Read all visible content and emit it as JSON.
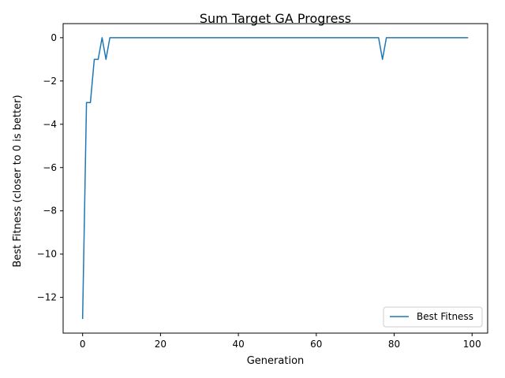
{
  "chart_data": {
    "type": "line",
    "title": "Sum Target GA Progress",
    "xlabel": "Generation",
    "ylabel": "Best Fitness (closer to 0 is better)",
    "xlim": [
      -5,
      104
    ],
    "ylim": [
      -13.65,
      0.65
    ],
    "xticks": [
      0,
      20,
      40,
      60,
      80,
      100
    ],
    "yticks": [
      0,
      -2,
      -4,
      -6,
      -8,
      -10,
      -12
    ],
    "xtick_labels": [
      "0",
      "20",
      "40",
      "60",
      "80",
      "100"
    ],
    "ytick_labels": [
      "0",
      "−2",
      "−4",
      "−6",
      "−8",
      "−10",
      "−12"
    ],
    "grid": false,
    "legend_position": "lower-right",
    "series": [
      {
        "name": "Best Fitness",
        "color": "#1f77b4",
        "x": [
          0,
          1,
          2,
          3,
          4,
          5,
          6,
          7,
          8,
          9,
          10,
          11,
          12,
          13,
          14,
          15,
          16,
          17,
          18,
          19,
          20,
          21,
          22,
          23,
          24,
          25,
          26,
          27,
          28,
          29,
          30,
          31,
          32,
          33,
          34,
          35,
          36,
          37,
          38,
          39,
          40,
          41,
          42,
          43,
          44,
          45,
          46,
          47,
          48,
          49,
          50,
          51,
          52,
          53,
          54,
          55,
          56,
          57,
          58,
          59,
          60,
          61,
          62,
          63,
          64,
          65,
          66,
          67,
          68,
          69,
          70,
          71,
          72,
          73,
          74,
          75,
          76,
          77,
          78,
          79,
          80,
          81,
          82,
          83,
          84,
          85,
          86,
          87,
          88,
          89,
          90,
          91,
          92,
          93,
          94,
          95,
          96,
          97,
          98,
          99
        ],
        "y": [
          -13,
          -3,
          -3,
          -1,
          -1,
          0,
          -1,
          0,
          0,
          0,
          0,
          0,
          0,
          0,
          0,
          0,
          0,
          0,
          0,
          0,
          0,
          0,
          0,
          0,
          0,
          0,
          0,
          0,
          0,
          0,
          0,
          0,
          0,
          0,
          0,
          0,
          0,
          0,
          0,
          0,
          0,
          0,
          0,
          0,
          0,
          0,
          0,
          0,
          0,
          0,
          0,
          0,
          0,
          0,
          0,
          0,
          0,
          0,
          0,
          0,
          0,
          0,
          0,
          0,
          0,
          0,
          0,
          0,
          0,
          0,
          0,
          0,
          0,
          0,
          0,
          0,
          0,
          -1,
          0,
          0,
          0,
          0,
          0,
          0,
          0,
          0,
          0,
          0,
          0,
          0,
          0,
          0,
          0,
          0,
          0,
          0,
          0,
          0,
          0,
          0
        ]
      }
    ]
  }
}
